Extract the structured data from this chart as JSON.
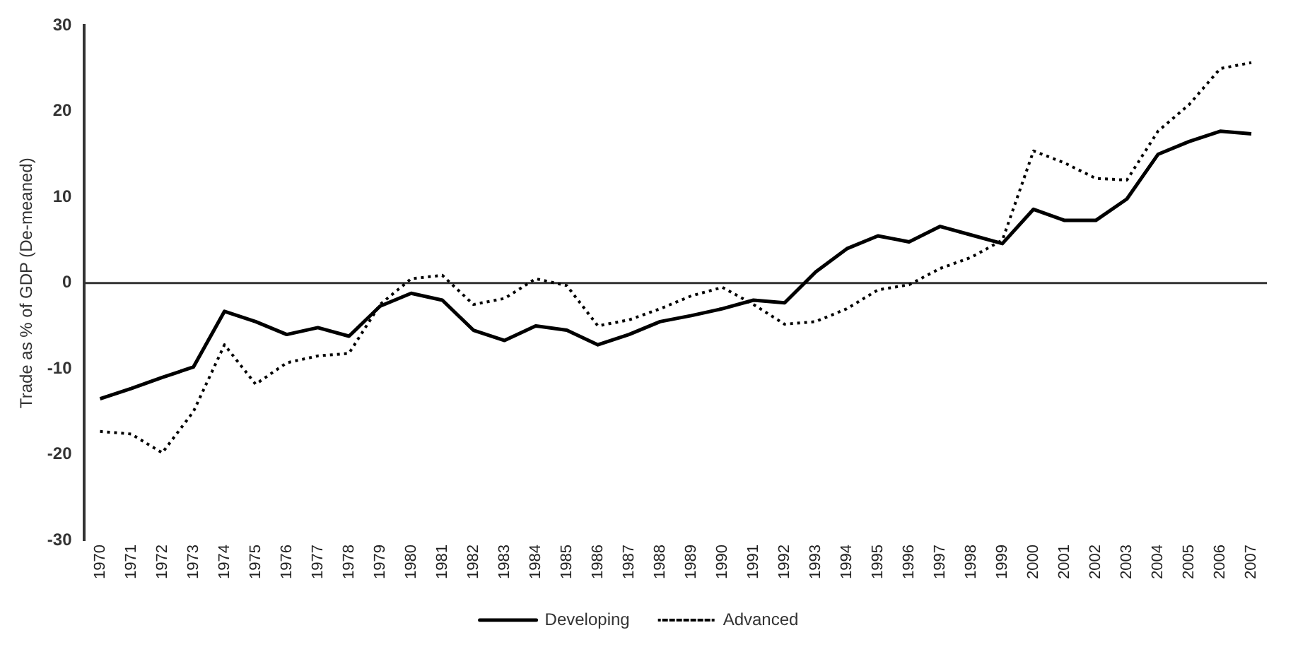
{
  "chart_data": {
    "type": "line",
    "ylabel": "Trade as % of GDP (De-meaned)",
    "categories": [
      "1970",
      "1971",
      "1972",
      "1973",
      "1974",
      "1975",
      "1976",
      "1977",
      "1978",
      "1979",
      "1980",
      "1981",
      "1982",
      "1983",
      "1984",
      "1985",
      "1986",
      "1987",
      "1988",
      "1989",
      "1990",
      "1991",
      "1992",
      "1993",
      "1994",
      "1995",
      "1996",
      "1997",
      "1998",
      "1999",
      "2000",
      "2001",
      "2002",
      "2003",
      "2004",
      "2005",
      "2006",
      "2007"
    ],
    "series": [
      {
        "name": "Developing",
        "color": "#000000",
        "line_style": "solid",
        "values": [
          -13.5,
          -12.3,
          -11,
          -9.8,
          -3.3,
          -4.5,
          -6,
          -5.2,
          -6.2,
          -2.7,
          -1.2,
          -2,
          -5.5,
          -6.7,
          -5,
          -5.5,
          -7.2,
          -6,
          -4.5,
          -3.8,
          -3,
          -2,
          -2.3,
          1.3,
          4,
          5.5,
          4.8,
          6.6,
          5.6,
          4.6,
          8.6,
          7.3,
          7.3,
          9.8,
          15,
          16.5,
          17.7,
          17.4
        ]
      },
      {
        "name": "Advanced",
        "color": "#000000",
        "line_style": "dotted",
        "values": [
          -17.3,
          -17.6,
          -19.8,
          -15,
          -7.2,
          -11.8,
          -9.3,
          -8.5,
          -8.2,
          -2.5,
          0.5,
          0.9,
          -2.5,
          -1.8,
          0.5,
          -0.3,
          -5,
          -4.3,
          -3,
          -1.5,
          -0.5,
          -2.5,
          -4.8,
          -4.5,
          -3,
          -0.8,
          -0.2,
          1.7,
          3,
          5,
          15.4,
          14,
          12.2,
          12,
          17.7,
          20.8,
          25,
          25.7
        ]
      }
    ],
    "ref_lines": [
      {
        "axis": "y",
        "value": 0,
        "color": "#333333"
      }
    ],
    "ylim": [
      -30,
      30
    ],
    "yticks": [
      -30,
      -20,
      -10,
      0,
      10,
      20,
      30
    ],
    "grid": false,
    "legend": "bottom",
    "marker": "none"
  }
}
